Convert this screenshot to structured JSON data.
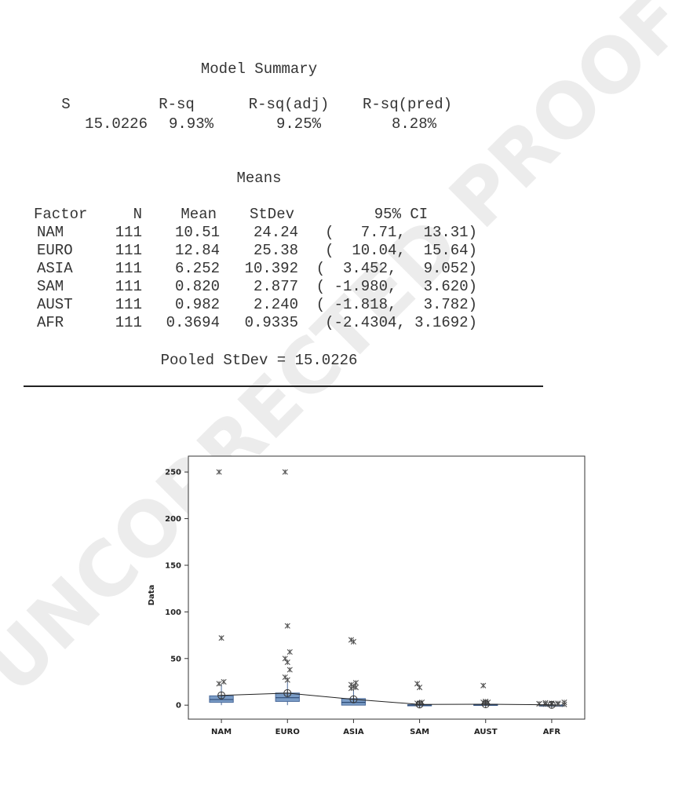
{
  "watermark": "UNCORRECTED PROOF",
  "model_summary": {
    "title": "Model Summary",
    "headers": [
      "S",
      "R-sq",
      "R-sq(adj)",
      "R-sq(pred)"
    ],
    "values": [
      "15.0226",
      "9.93%",
      "9.25%",
      "8.28%"
    ]
  },
  "means": {
    "title": "Means",
    "headers": [
      "Factor",
      "N",
      "Mean",
      "StDev",
      "95% CI"
    ],
    "rows": [
      [
        "NAM",
        "111",
        "10.51",
        "24.24",
        "(   7.71,  13.31)"
      ],
      [
        "EURO",
        "111",
        "12.84",
        "25.38",
        "(  10.04,  15.64)"
      ],
      [
        "ASIA",
        "111",
        "6.252",
        "10.392",
        "(  3.452,   9.052)"
      ],
      [
        "SAM",
        "111",
        "0.820",
        "2.877",
        "( -1.980,   3.620)"
      ],
      [
        "AUST",
        "111",
        "0.982",
        "2.240",
        "( -1.818,   3.782)"
      ],
      [
        "AFR",
        "111",
        "0.3694",
        "0.9335",
        "(-2.4304, 3.1692)"
      ]
    ],
    "pooled": "Pooled StDev = 15.0226"
  },
  "chart_data": {
    "type": "boxplot",
    "y_label": "Data",
    "categories": [
      "NAM",
      "EURO",
      "ASIA",
      "SAM",
      "AUST",
      "AFR"
    ],
    "ylim": [
      -15,
      267
    ],
    "yticks": [
      0,
      50,
      100,
      150,
      200,
      250
    ],
    "box_color": "#7a9cc6",
    "boxes": [
      {
        "whisker_low": 0,
        "q1": 3,
        "median": 6,
        "q3": 10,
        "whisker_high": 22,
        "outliers": [
          250,
          72,
          25,
          23
        ]
      },
      {
        "whisker_low": 0,
        "q1": 4,
        "median": 8,
        "q3": 13,
        "whisker_high": 25,
        "outliers": [
          250,
          85,
          57,
          50,
          46,
          38,
          30,
          27
        ]
      },
      {
        "whisker_low": 0,
        "q1": 0,
        "median": 3,
        "q3": 7,
        "whisker_high": 16,
        "outliers": [
          70,
          68,
          24,
          22,
          20,
          19,
          18
        ]
      },
      {
        "whisker_low": 0,
        "q1": 0,
        "median": 0,
        "q3": 0.5,
        "whisker_high": 1,
        "outliers": [
          23,
          19,
          3,
          2,
          2
        ]
      },
      {
        "whisker_low": 0,
        "q1": 0,
        "median": 0,
        "q3": 1,
        "whisker_high": 2,
        "outliers": [
          21,
          4,
          3,
          3,
          2
        ]
      },
      {
        "whisker_low": 0,
        "q1": 0,
        "median": 0,
        "q3": 0.2,
        "whisker_high": 0.5,
        "outliers": [
          3,
          2.5,
          2,
          2,
          1.5,
          1.5,
          1,
          1,
          1,
          0.8
        ]
      }
    ],
    "means": [
      10.51,
      12.84,
      6.252,
      0.82,
      0.982,
      0.3694
    ]
  }
}
